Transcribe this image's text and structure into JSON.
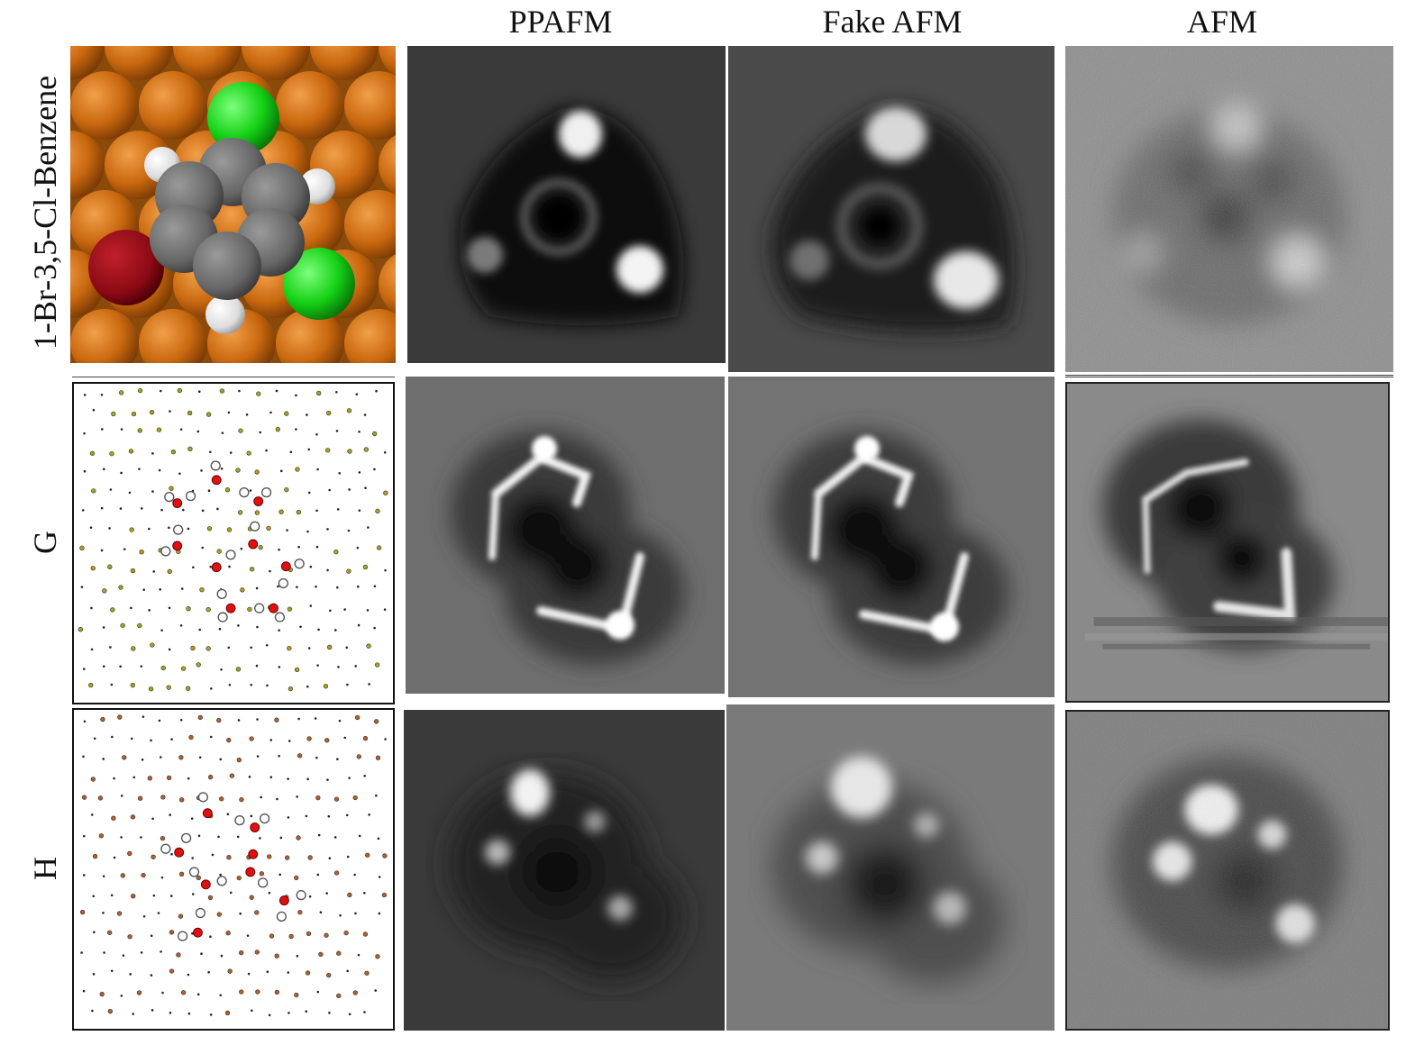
{
  "column_headers": [
    "PPAFM",
    "Fake AFM",
    "AFM"
  ],
  "row_labels": [
    "1-Br-3,5-Cl-Benzene",
    "G",
    "H"
  ]
}
